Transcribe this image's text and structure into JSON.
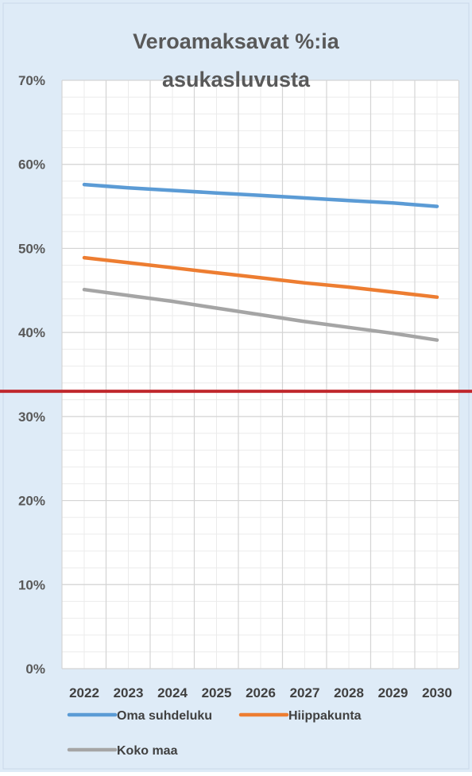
{
  "chart_data": {
    "type": "line",
    "title_lines": [
      "Veroamaksavat %:ia",
      "asukasluvusta"
    ],
    "categories": [
      "2022",
      "2023",
      "2024",
      "2025",
      "2026",
      "2027",
      "2028",
      "2029",
      "2030"
    ],
    "ylim": [
      0,
      0.7
    ],
    "yticks": [
      0,
      0.1,
      0.2,
      0.3,
      0.4,
      0.5,
      0.6,
      0.7
    ],
    "ytick_labels": [
      "0%",
      "10%",
      "20%",
      "30%",
      "40%",
      "50%",
      "60%",
      "70%"
    ],
    "series": [
      {
        "name": "Oma suhdeluku",
        "color": "#5B9BD5",
        "values": [
          0.576,
          0.572,
          0.569,
          0.566,
          0.563,
          0.56,
          0.557,
          0.554,
          0.55
        ]
      },
      {
        "name": "Hiippakunta",
        "color": "#ED7D31",
        "values": [
          0.489,
          0.483,
          0.477,
          0.471,
          0.465,
          0.459,
          0.454,
          0.448,
          0.442
        ]
      },
      {
        "name": "Koko maa",
        "color": "#A5A5A5",
        "values": [
          0.451,
          0.444,
          0.437,
          0.429,
          0.421,
          0.413,
          0.406,
          0.399,
          0.391
        ]
      }
    ],
    "reference_line": {
      "value": 0.33,
      "color": "#C0282D"
    },
    "grid": true,
    "legend_position": "bottom",
    "background": "#DEEBF7",
    "plot_background": "#FFFFFF"
  }
}
